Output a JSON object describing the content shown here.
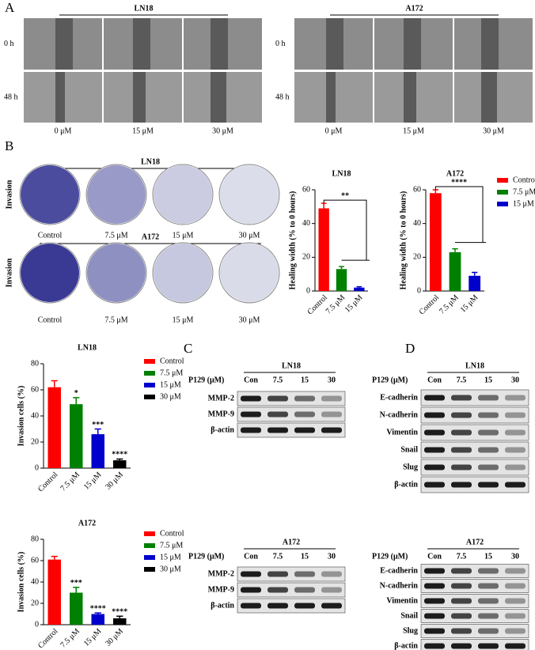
{
  "panel_a": {
    "letter": "A",
    "cells": [
      {
        "name": "LN18",
        "rows": [
          "0 h",
          "48 h"
        ],
        "columns": [
          "0 μM",
          "15 μM",
          "30 μM"
        ]
      },
      {
        "name": "A172",
        "rows": [
          "0 h",
          "48 h"
        ],
        "columns": [
          "0 μM",
          "15 μM",
          "30 μM"
        ]
      }
    ]
  },
  "panel_b": {
    "letter": "B",
    "ylabel": "Invasion",
    "groups": [
      {
        "name": "LN18",
        "columns": [
          "Control",
          "7.5 μM",
          "15 μM",
          "30 μM"
        ]
      },
      {
        "name": "A172",
        "columns": [
          "Control",
          "7.5 μM",
          "15 μM",
          "30 μM"
        ]
      }
    ]
  },
  "chart_data": [
    {
      "type": "bar",
      "title": "LN18",
      "ylabel": "Healing width (% to 0 hours)",
      "categories": [
        "Control",
        "7.5 μM",
        "15 μM"
      ],
      "values": [
        49,
        13,
        2
      ],
      "errors": [
        3,
        1.5,
        0.5
      ],
      "colors": [
        "#ff0000",
        "#008000",
        "#0000cc"
      ],
      "ylim": [
        0,
        60
      ],
      "yticks": [
        0,
        20,
        40,
        60
      ],
      "annotation": "**"
    },
    {
      "type": "bar",
      "title": "A172",
      "ylabel": "Healing width (% to 0 hours)",
      "categories": [
        "Control",
        "7.5 μM",
        "15 μM"
      ],
      "values": [
        58,
        23,
        9
      ],
      "errors": [
        2,
        2,
        2
      ],
      "colors": [
        "#ff0000",
        "#008000",
        "#0000cc"
      ],
      "ylim": [
        0,
        60
      ],
      "yticks": [
        0,
        20,
        40,
        60
      ],
      "annotation": "****",
      "legend": "right"
    },
    {
      "type": "bar",
      "title": "LN18",
      "ylabel": "Invasion cells (%)",
      "categories": [
        "Control",
        "7.5 μM",
        "15 μM",
        "30 μM"
      ],
      "values": [
        62,
        49,
        26,
        6
      ],
      "errors": [
        5,
        5,
        4,
        1
      ],
      "colors": [
        "#ff0000",
        "#008000",
        "#0000cc",
        "#000000"
      ],
      "ylim": [
        0,
        80
      ],
      "yticks": [
        0,
        20,
        40,
        60,
        80
      ],
      "significance": [
        null,
        "*",
        "***",
        "****"
      ],
      "legend": "right"
    },
    {
      "type": "bar",
      "title": "A172",
      "ylabel": "Invasion cells (%)",
      "categories": [
        "Control",
        "7.5 μM",
        "15 μM",
        "30 μM"
      ],
      "values": [
        61,
        30,
        10,
        6
      ],
      "errors": [
        3,
        5,
        1,
        2
      ],
      "colors": [
        "#ff0000",
        "#008000",
        "#0000cc",
        "#000000"
      ],
      "ylim": [
        0,
        80
      ],
      "yticks": [
        0,
        20,
        40,
        60,
        80
      ],
      "significance": [
        null,
        "***",
        "****",
        "****"
      ],
      "legend": "right"
    }
  ],
  "panel_c": {
    "letter": "C",
    "blots": [
      {
        "cell": "LN18",
        "dose_label": "P129 (μM)",
        "doses": [
          "Con",
          "7.5",
          "15",
          "30"
        ],
        "proteins": [
          "MMP-2",
          "MMP-9",
          "β-actin"
        ]
      },
      {
        "cell": "A172",
        "dose_label": "P129 (μM)",
        "doses": [
          "Con",
          "7.5",
          "15",
          "30"
        ],
        "proteins": [
          "MMP-2",
          "MMP-9",
          "β-actin"
        ]
      }
    ]
  },
  "panel_d": {
    "letter": "D",
    "blots": [
      {
        "cell": "LN18",
        "dose_label": "P129 (μM)",
        "doses": [
          "Con",
          "7.5",
          "15",
          "30"
        ],
        "proteins": [
          "E-cadherin",
          "N-cadherin",
          "Vimentin",
          "Snail",
          "Slug",
          "β-actin"
        ]
      },
      {
        "cell": "A172",
        "dose_label": "P129 (μM)",
        "doses": [
          "Con",
          "7.5",
          "15",
          "30"
        ],
        "proteins": [
          "E-cadherin",
          "N-cadherin",
          "Vimentin",
          "Snail",
          "Slug",
          "β-actin"
        ]
      }
    ]
  }
}
